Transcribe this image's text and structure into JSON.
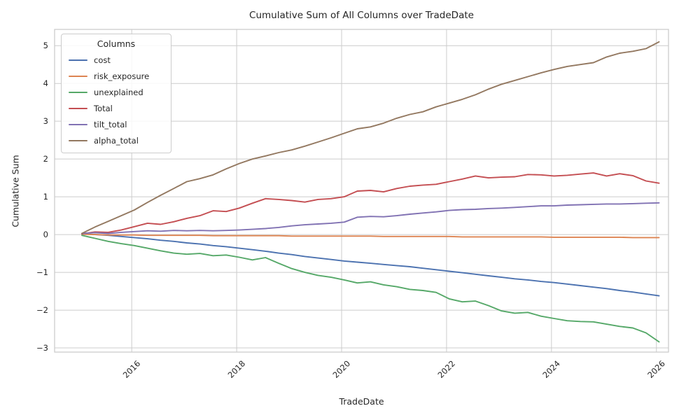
{
  "title": "Cumulative Sum of All Columns over TradeDate",
  "xlabel": "TradeDate",
  "ylabel": "Cumulative Sum",
  "legend": {
    "title": "Columns",
    "entries": [
      "cost",
      "risk_exposure",
      "unexplained",
      "Total",
      "tilt_total",
      "alpha_total"
    ]
  },
  "chart_data": {
    "type": "line",
    "title": "Cumulative Sum of All Columns over TradeDate",
    "xlabel": "TradeDate",
    "ylabel": "Cumulative Sum",
    "grid": true,
    "legend_position": "upper left",
    "xlim": [
      2014.53,
      2026.23
    ],
    "ylim": [
      -3.11,
      5.43
    ],
    "x_ticks": {
      "values": [
        2016,
        2018,
        2020,
        2022,
        2024,
        2026
      ],
      "labels": [
        "2016",
        "2018",
        "2020",
        "2022",
        "2024",
        "2026"
      ]
    },
    "y_ticks": {
      "values": [
        -3,
        -2,
        -1,
        0,
        1,
        2,
        3,
        4,
        5
      ],
      "labels": [
        "−3",
        "−2",
        "−1",
        "0",
        "1",
        "2",
        "3",
        "4",
        "5"
      ]
    },
    "x": [
      2015.05,
      2015.3,
      2015.55,
      2015.8,
      2016.05,
      2016.3,
      2016.55,
      2016.8,
      2017.05,
      2017.3,
      2017.55,
      2017.8,
      2018.05,
      2018.3,
      2018.55,
      2018.8,
      2019.05,
      2019.3,
      2019.55,
      2019.8,
      2020.05,
      2020.3,
      2020.55,
      2020.8,
      2021.05,
      2021.3,
      2021.55,
      2021.8,
      2022.05,
      2022.3,
      2022.55,
      2022.8,
      2023.05,
      2023.3,
      2023.55,
      2023.8,
      2024.05,
      2024.3,
      2024.55,
      2024.8,
      2025.05,
      2025.3,
      2025.55,
      2025.8,
      2026.05
    ],
    "series": [
      {
        "name": "cost",
        "color": "#4C72B0",
        "values": [
          0.02,
          0.0,
          -0.02,
          -0.05,
          -0.08,
          -0.11,
          -0.15,
          -0.18,
          -0.22,
          -0.25,
          -0.29,
          -0.32,
          -0.36,
          -0.4,
          -0.44,
          -0.49,
          -0.53,
          -0.58,
          -0.62,
          -0.66,
          -0.7,
          -0.73,
          -0.76,
          -0.79,
          -0.82,
          -0.85,
          -0.89,
          -0.93,
          -0.97,
          -1.01,
          -1.05,
          -1.09,
          -1.13,
          -1.17,
          -1.2,
          -1.24,
          -1.27,
          -1.31,
          -1.35,
          -1.39,
          -1.43,
          -1.48,
          -1.52,
          -1.57,
          -1.62
        ]
      },
      {
        "name": "risk_exposure",
        "color": "#DD8452",
        "values": [
          0.01,
          0.0,
          -0.01,
          -0.01,
          -0.01,
          -0.02,
          -0.02,
          -0.02,
          -0.02,
          -0.02,
          -0.03,
          -0.03,
          -0.03,
          -0.03,
          -0.03,
          -0.03,
          -0.04,
          -0.04,
          -0.04,
          -0.04,
          -0.04,
          -0.04,
          -0.04,
          -0.05,
          -0.05,
          -0.05,
          -0.05,
          -0.05,
          -0.05,
          -0.06,
          -0.06,
          -0.06,
          -0.06,
          -0.06,
          -0.06,
          -0.06,
          -0.07,
          -0.07,
          -0.07,
          -0.07,
          -0.07,
          -0.07,
          -0.08,
          -0.08,
          -0.08
        ]
      },
      {
        "name": "unexplained",
        "color": "#55A868",
        "values": [
          -0.02,
          -0.1,
          -0.18,
          -0.24,
          -0.29,
          -0.36,
          -0.43,
          -0.49,
          -0.52,
          -0.5,
          -0.56,
          -0.54,
          -0.6,
          -0.67,
          -0.61,
          -0.76,
          -0.9,
          -1.0,
          -1.08,
          -1.13,
          -1.2,
          -1.28,
          -1.25,
          -1.33,
          -1.38,
          -1.45,
          -1.48,
          -1.53,
          -1.7,
          -1.78,
          -1.76,
          -1.88,
          -2.02,
          -2.08,
          -2.06,
          -2.16,
          -2.22,
          -2.28,
          -2.3,
          -2.31,
          -2.37,
          -2.43,
          -2.47,
          -2.6,
          -2.84
        ]
      },
      {
        "name": "Total",
        "color": "#C44E52",
        "values": [
          0.02,
          0.07,
          0.06,
          0.12,
          0.21,
          0.3,
          0.27,
          0.34,
          0.43,
          0.5,
          0.63,
          0.61,
          0.7,
          0.83,
          0.95,
          0.93,
          0.9,
          0.86,
          0.93,
          0.95,
          1.0,
          1.15,
          1.17,
          1.13,
          1.22,
          1.28,
          1.31,
          1.33,
          1.4,
          1.47,
          1.55,
          1.5,
          1.52,
          1.53,
          1.59,
          1.58,
          1.55,
          1.57,
          1.6,
          1.63,
          1.55,
          1.61,
          1.56,
          1.42,
          1.36
        ]
      },
      {
        "name": "tilt_total",
        "color": "#8172B3",
        "values": [
          0.03,
          0.05,
          0.03,
          0.06,
          0.08,
          0.1,
          0.09,
          0.11,
          0.1,
          0.11,
          0.1,
          0.11,
          0.12,
          0.14,
          0.16,
          0.19,
          0.23,
          0.26,
          0.28,
          0.3,
          0.33,
          0.46,
          0.48,
          0.47,
          0.5,
          0.54,
          0.57,
          0.6,
          0.64,
          0.66,
          0.67,
          0.69,
          0.7,
          0.72,
          0.74,
          0.76,
          0.76,
          0.78,
          0.79,
          0.8,
          0.81,
          0.81,
          0.82,
          0.83,
          0.84
        ]
      },
      {
        "name": "alpha_total",
        "color": "#937860",
        "values": [
          0.03,
          0.2,
          0.35,
          0.5,
          0.65,
          0.85,
          1.04,
          1.22,
          1.4,
          1.48,
          1.58,
          1.74,
          1.88,
          2.0,
          2.08,
          2.17,
          2.24,
          2.34,
          2.45,
          2.56,
          2.68,
          2.8,
          2.85,
          2.95,
          3.08,
          3.18,
          3.25,
          3.38,
          3.48,
          3.58,
          3.7,
          3.85,
          3.98,
          4.08,
          4.18,
          4.28,
          4.37,
          4.45,
          4.5,
          4.55,
          4.7,
          4.8,
          4.85,
          4.92,
          5.1
        ]
      }
    ],
    "style": {
      "grid_color": "#cccccc",
      "spine_color": "#cccccc",
      "text_color": "#262626",
      "background": "#ffffff"
    }
  }
}
